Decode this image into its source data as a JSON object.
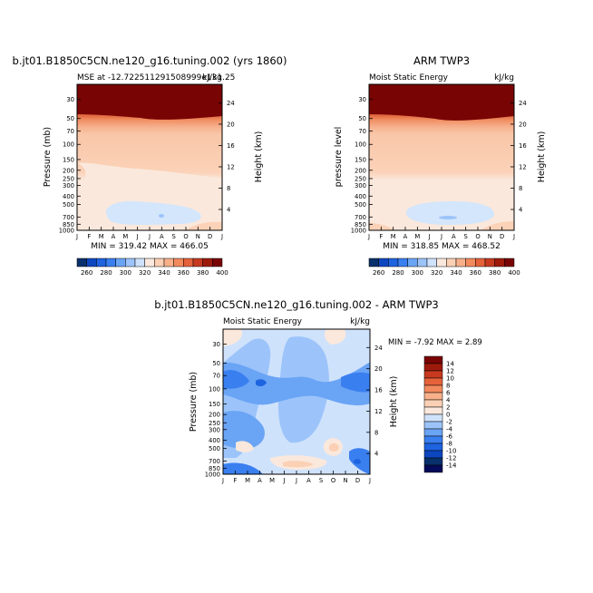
{
  "months": [
    "J",
    "F",
    "M",
    "A",
    "M",
    "J",
    "J",
    "A",
    "S",
    "O",
    "N",
    "D",
    "J"
  ],
  "pressure_levels": [
    30,
    50,
    70,
    100,
    150,
    200,
    250,
    300,
    400,
    500,
    700,
    850,
    1000
  ],
  "height_km_ticks": [
    4,
    8,
    12,
    16,
    20,
    24
  ],
  "panel_left": {
    "title": "b.jt01.B1850C5CN.ne120_g16.tuning.002 (yrs 1860)",
    "left_label": "MSE at -12.722511291508999e131.25",
    "right_label": "kJ/kg",
    "ylabel": "Pressure (mb)",
    "y2label": "Height (km)",
    "minmax": "MIN = 319.42 MAX = 466.05"
  },
  "panel_right": {
    "title": "ARM TWP3",
    "left_label": "Moist Static Energy",
    "right_label": "kJ/kg",
    "ylabel": "pressure level",
    "y2label": "Height (km)",
    "minmax": "MIN = 318.85 MAX = 468.52"
  },
  "panel_diff": {
    "title": "b.jt01.B1850C5CN.ne120_g16.tuning.002 - ARM TWP3",
    "left_label": "Moist Static Energy",
    "right_label": "kJ/kg",
    "ylabel": "Pressure (mb)",
    "y2label": "Height (km)",
    "minmax": "MIN =  -7.92 MAX =   2.89"
  },
  "colorbar_abs": {
    "labels": [
      "260",
      "280",
      "300",
      "320",
      "340",
      "360",
      "380",
      "400"
    ],
    "colors": [
      "#08306b",
      "#0d47c0",
      "#1e63e0",
      "#3a7ff0",
      "#6aa4f5",
      "#9cc4fa",
      "#cfe2fc",
      "#fbe8dc",
      "#fbd0b5",
      "#f7b08a",
      "#f28a5e",
      "#e5623a",
      "#c73a1f",
      "#9e1b0c",
      "#780404"
    ]
  },
  "colorbar_diff": {
    "labels": [
      "14",
      "12",
      "10",
      "8",
      "6",
      "4",
      "2",
      "0",
      "-2",
      "-4",
      "-6",
      "-8",
      "-10",
      "-12",
      "-14"
    ],
    "colors": [
      "#780404",
      "#9e1b0c",
      "#c73a1f",
      "#e5623a",
      "#f28a5e",
      "#f7b08a",
      "#fbd0b5",
      "#fbe8dc",
      "#cfe2fc",
      "#9cc4fa",
      "#6aa4f5",
      "#3a7ff0",
      "#1e63e0",
      "#0d47c0",
      "#08306b",
      "#050a5a"
    ]
  },
  "chart_data": [
    {
      "type": "heatmap",
      "title": "b.jt01.B1850C5CN.ne120_g16.tuning.002 (yrs 1860)",
      "xlabel": "",
      "ylabel": "Pressure (mb)",
      "y2label": "Height (km)",
      "x": [
        "J",
        "F",
        "M",
        "A",
        "M",
        "J",
        "J",
        "A",
        "S",
        "O",
        "N",
        "D",
        "J"
      ],
      "y": [
        30,
        50,
        70,
        100,
        150,
        200,
        250,
        300,
        400,
        500,
        700,
        850,
        1000
      ],
      "ylim": [
        1000,
        20
      ],
      "levels": [
        260,
        270,
        280,
        290,
        300,
        310,
        320,
        330,
        340,
        350,
        360,
        370,
        380,
        390,
        400
      ],
      "min": 319.42,
      "max": 466.05
    },
    {
      "type": "heatmap",
      "title": "ARM TWP3",
      "xlabel": "",
      "ylabel": "pressure level",
      "y2label": "Height (km)",
      "x": [
        "J",
        "F",
        "M",
        "A",
        "M",
        "J",
        "J",
        "A",
        "S",
        "O",
        "N",
        "D",
        "J"
      ],
      "y": [
        30,
        50,
        70,
        100,
        150,
        200,
        250,
        300,
        400,
        500,
        700,
        850,
        1000
      ],
      "ylim": [
        1000,
        20
      ],
      "levels": [
        260,
        270,
        280,
        290,
        300,
        310,
        320,
        330,
        340,
        350,
        360,
        370,
        380,
        390,
        400
      ],
      "min": 318.85,
      "max": 468.52
    },
    {
      "type": "heatmap",
      "title": "b.jt01.B1850C5CN.ne120_g16.tuning.002 - ARM TWP3",
      "xlabel": "",
      "ylabel": "Pressure (mb)",
      "y2label": "Height (km)",
      "x": [
        "J",
        "F",
        "M",
        "A",
        "M",
        "J",
        "J",
        "A",
        "S",
        "O",
        "N",
        "D",
        "J"
      ],
      "y": [
        30,
        50,
        70,
        100,
        150,
        200,
        250,
        300,
        400,
        500,
        700,
        850,
        1000
      ],
      "ylim": [
        1000,
        20
      ],
      "levels": [
        -14,
        -12,
        -10,
        -8,
        -6,
        -4,
        -2,
        0,
        2,
        4,
        6,
        8,
        10,
        12,
        14
      ],
      "min": -7.92,
      "max": 2.89
    }
  ]
}
